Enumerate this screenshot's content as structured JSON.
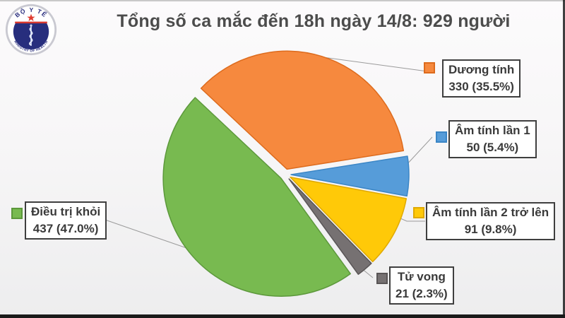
{
  "title": "Tổng số ca mắc đến 18h ngày 14/8: 929 người",
  "logo": {
    "top_text": "BỘ Y TẾ",
    "bottom_text": "MINISTRY OF HEALTH"
  },
  "chart_data": {
    "type": "pie",
    "title": "Tổng số ca mắc đến 18h ngày 14/8: 929 người",
    "total": 929,
    "unit": "người",
    "start_angle_deg": -46.8,
    "exploded": true,
    "legend_position": "callout-boxes",
    "slices": [
      {
        "label": "Dương tính",
        "value": 330,
        "pct": 35.5,
        "callout": "330 (35.5%)",
        "color": "#F6893E",
        "border": "#DD6B1D"
      },
      {
        "label": "Âm tính lần 1",
        "value": 50,
        "pct": 5.4,
        "callout": "50 (5.4%)",
        "color": "#569CD9",
        "border": "#3B86C6"
      },
      {
        "label": "Âm tính lần 2 trở lên",
        "value": 91,
        "pct": 9.8,
        "callout": "91 (9.8%)",
        "color": "#FFC908",
        "border": "#E0A900"
      },
      {
        "label": "Tử vong",
        "value": 21,
        "pct": 2.3,
        "callout": "21 (2.3%)",
        "color": "#767172",
        "border": "#595556"
      },
      {
        "label": "Điều trị khỏi",
        "value": 437,
        "pct": 47.0,
        "callout": "437 (47.0%)",
        "color": "#78BA50",
        "border": "#5C983B"
      }
    ]
  }
}
